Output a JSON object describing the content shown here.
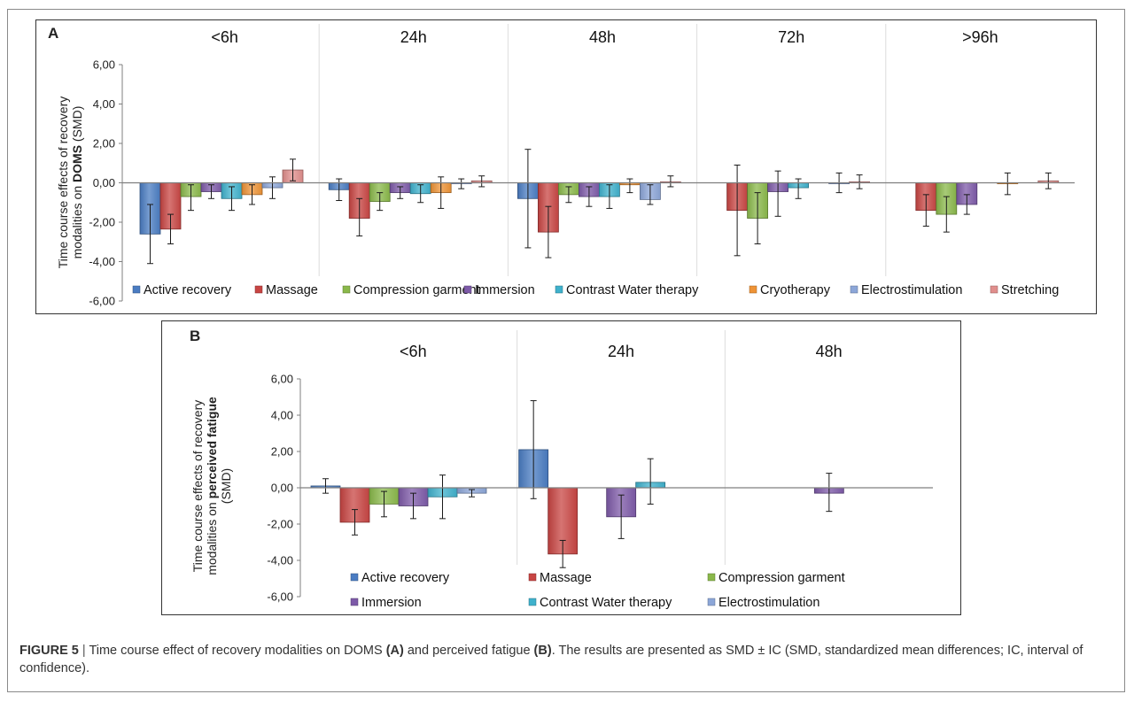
{
  "caption": {
    "label": "FIGURE 5",
    "sep": " | ",
    "part1": "Time course effect of recovery modalities on DOMS ",
    "refA": "(A)",
    "part2": " and perceived fatigue ",
    "refB": "(B)",
    "part3": ". The results are presented as SMD ± IC (SMD, standardized mean differences; IC, interval of confidence)."
  },
  "colors": {
    "Active recovery": "#4a7cc2",
    "Massage": "#c84543",
    "Compression garment": "#8ab84a",
    "Immersion": "#7d5aa8",
    "Contrast Water therapy": "#3fb1cc",
    "Cryotherapy": "#ee9336",
    "Electrostimulation": "#8ca6d8",
    "Stretching": "#e08e8c",
    "axis": "#7f7f7f",
    "divider": "#dcdcdc",
    "errorbar": "#1a1a1a"
  },
  "chart_data": [
    {
      "type": "bar",
      "panel": "A",
      "ylabel_lines": [
        [
          "Time course effects of recovery"
        ],
        [
          "modalities on ",
          "DOMS",
          " (SMD)"
        ]
      ],
      "ylim": [
        -6,
        6
      ],
      "yticks": [
        "6,00",
        "4,00",
        "2,00",
        "0,00",
        "-2,00",
        "-4,00",
        "-6,00"
      ],
      "ytick_values": [
        6,
        4,
        2,
        0,
        -2,
        -4,
        -6
      ],
      "categories": [
        "<6h",
        "24h",
        "48h",
        "72h",
        ">96h"
      ],
      "series": [
        {
          "name": "Active recovery",
          "values": [
            -2.6,
            -0.35,
            -0.8,
            null,
            null
          ],
          "err_low": [
            -4.1,
            -0.9,
            -3.3,
            null,
            null
          ],
          "err_high": [
            -1.1,
            0.2,
            1.7,
            null,
            null
          ]
        },
        {
          "name": "Massage",
          "values": [
            -2.35,
            -1.8,
            -2.5,
            -1.4,
            -1.4
          ],
          "err_low": [
            -3.1,
            -2.7,
            -3.8,
            -3.7,
            -2.2
          ],
          "err_high": [
            -1.6,
            -0.8,
            -1.2,
            0.9,
            -0.6
          ]
        },
        {
          "name": "Compression garment",
          "values": [
            -0.7,
            -0.95,
            -0.6,
            -1.8,
            -1.6
          ],
          "err_low": [
            -1.4,
            -1.4,
            -1.0,
            -3.1,
            -2.5
          ],
          "err_high": [
            -0.1,
            -0.5,
            -0.2,
            -0.5,
            -0.7
          ]
        },
        {
          "name": "Immersion",
          "values": [
            -0.45,
            -0.5,
            -0.7,
            -0.45,
            -1.1
          ],
          "err_low": [
            -0.8,
            -0.8,
            -1.2,
            -1.7,
            -1.6
          ],
          "err_high": [
            -0.1,
            -0.2,
            -0.2,
            0.6,
            -0.6
          ]
        },
        {
          "name": "Contrast Water therapy",
          "values": [
            -0.8,
            -0.55,
            -0.7,
            -0.25,
            null
          ],
          "err_low": [
            -1.4,
            -1.0,
            -1.3,
            -0.8,
            null
          ],
          "err_high": [
            -0.2,
            -0.1,
            -0.1,
            0.2,
            null
          ]
        },
        {
          "name": "Cryotherapy",
          "values": [
            -0.6,
            -0.5,
            -0.1,
            null,
            -0.05
          ],
          "err_low": [
            -1.1,
            -1.3,
            -0.5,
            null,
            -0.6
          ],
          "err_high": [
            -0.1,
            0.3,
            0.2,
            null,
            0.5
          ]
        },
        {
          "name": "Electrostimulation",
          "values": [
            -0.25,
            -0.05,
            -0.85,
            -0.05,
            null
          ],
          "err_low": [
            -0.8,
            -0.3,
            -1.1,
            -0.5,
            null
          ],
          "err_high": [
            0.3,
            0.2,
            -0.1,
            0.5,
            null
          ]
        },
        {
          "name": "Stretching",
          "values": [
            0.65,
            0.1,
            0.05,
            0.05,
            0.1
          ],
          "err_low": [
            0.1,
            -0.2,
            -0.2,
            -0.3,
            -0.3
          ],
          "err_high": [
            1.2,
            0.35,
            0.35,
            0.4,
            0.5
          ]
        }
      ],
      "legend": {
        "placement": "bottom",
        "columns": 8
      }
    },
    {
      "type": "bar",
      "panel": "B",
      "ylabel_lines": [
        [
          "Time course effects of recovery"
        ],
        [
          "modalities on ",
          "perceived fatigue"
        ],
        [
          "(SMD)"
        ]
      ],
      "ylim": [
        -6,
        6
      ],
      "yticks": [
        "6,00",
        "4,00",
        "2,00",
        "0,00",
        "-2,00",
        "-4,00",
        "-6,00"
      ],
      "ytick_values": [
        6,
        4,
        2,
        0,
        -2,
        -4,
        -6
      ],
      "categories": [
        "<6h",
        "24h",
        "48h"
      ],
      "series": [
        {
          "name": "Active recovery",
          "values": [
            0.1,
            2.1,
            null
          ],
          "err_low": [
            -0.3,
            -0.6,
            null
          ],
          "err_high": [
            0.5,
            4.8,
            null
          ]
        },
        {
          "name": "Massage",
          "values": [
            -1.9,
            -3.65,
            null
          ],
          "err_low": [
            -2.6,
            -4.4,
            null
          ],
          "err_high": [
            -1.2,
            -2.9,
            null
          ]
        },
        {
          "name": "Compression garment",
          "values": [
            -0.9,
            null,
            null
          ],
          "err_low": [
            -1.6,
            null,
            null
          ],
          "err_high": [
            -0.2,
            null,
            null
          ]
        },
        {
          "name": "Immersion",
          "values": [
            -1.0,
            -1.6,
            -0.3
          ],
          "err_low": [
            -1.7,
            -2.8,
            -1.3
          ],
          "err_high": [
            -0.3,
            -0.4,
            0.8
          ]
        },
        {
          "name": "Contrast Water therapy",
          "values": [
            -0.5,
            0.3,
            null
          ],
          "err_low": [
            -1.7,
            -0.9,
            null
          ],
          "err_high": [
            0.7,
            1.6,
            null
          ]
        },
        {
          "name": "Electrostimulation",
          "values": [
            -0.3,
            null,
            null
          ],
          "err_low": [
            -0.5,
            null,
            null
          ],
          "err_high": [
            -0.1,
            null,
            null
          ]
        }
      ],
      "legend": {
        "placement": "bottom",
        "columns": 3
      }
    }
  ]
}
